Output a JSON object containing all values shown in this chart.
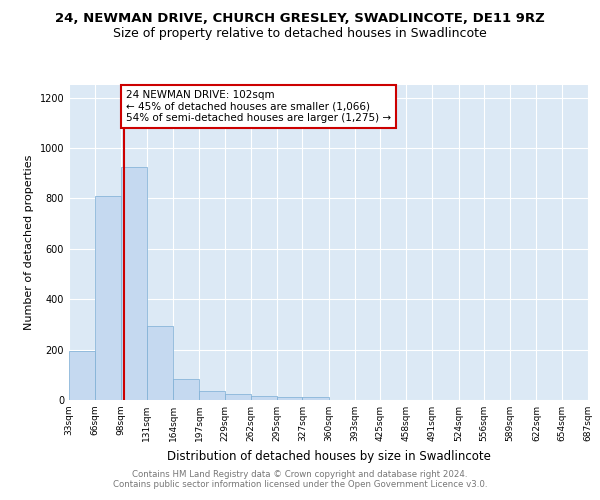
{
  "title1": "24, NEWMAN DRIVE, CHURCH GRESLEY, SWADLINCOTE, DE11 9RZ",
  "title2": "Size of property relative to detached houses in Swadlincote",
  "xlabel": "Distribution of detached houses by size in Swadlincote",
  "ylabel": "Number of detached properties",
  "footnote1": "Contains HM Land Registry data © Crown copyright and database right 2024.",
  "footnote2": "Contains public sector information licensed under the Open Government Licence v3.0.",
  "bar_edges": [
    33,
    66,
    98,
    131,
    164,
    197,
    229,
    262,
    295,
    327,
    360,
    393,
    425,
    458,
    491,
    524,
    556,
    589,
    622,
    654,
    687
  ],
  "bar_heights": [
    195,
    810,
    925,
    295,
    82,
    37,
    22,
    15,
    12,
    10,
    0,
    0,
    0,
    0,
    0,
    0,
    0,
    0,
    0,
    0
  ],
  "bar_color": "#c5d9f0",
  "bar_edgecolor": "#7aadd4",
  "property_line_x": 102,
  "property_line_color": "#cc0000",
  "annotation_line1": "24 NEWMAN DRIVE: 102sqm",
  "annotation_line2": "← 45% of detached houses are smaller (1,066)",
  "annotation_line3": "54% of semi-detached houses are larger (1,275) →",
  "annotation_box_color": "#cc0000",
  "ylim": [
    0,
    1250
  ],
  "xlim_left": 33,
  "xlim_right": 687,
  "background_color": "#dce9f5",
  "grid_color": "#ffffff",
  "title1_fontsize": 9.5,
  "title2_fontsize": 9,
  "ylabel_fontsize": 8,
  "xlabel_fontsize": 8.5,
  "tick_fontsize": 6.5,
  "annot_fontsize": 7.5,
  "footnote_fontsize": 6.2
}
